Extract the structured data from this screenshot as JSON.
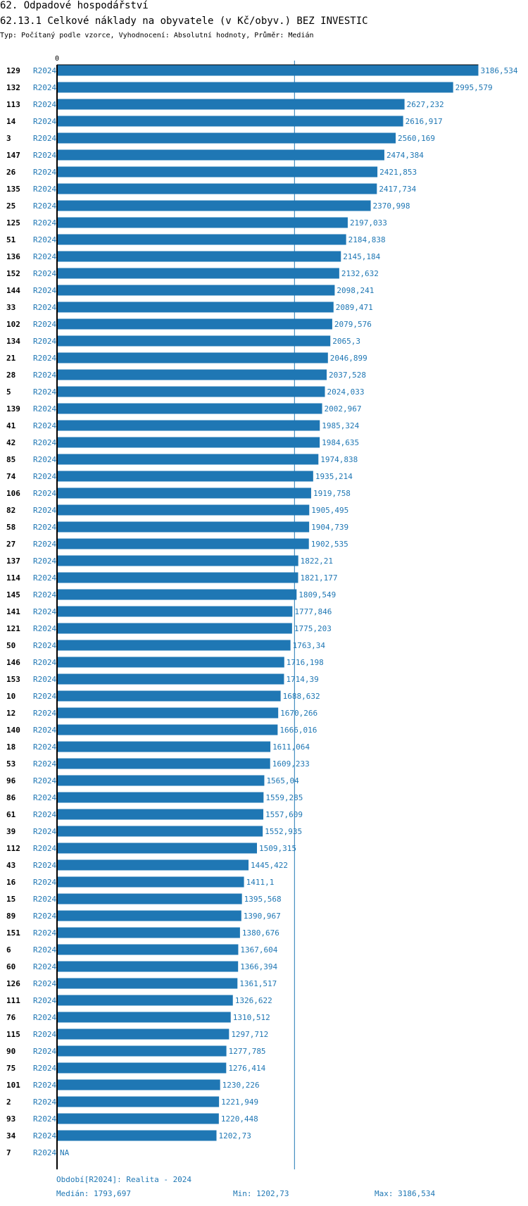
{
  "header": {
    "section": "62. Odpadové hospodářství",
    "title": "62.13.1 Celkové náklady na obyvatele (v Kč/obyv.) BEZ INVESTIC",
    "subtitle": "Typ: Počítaný podle vzorce, Vyhodnocení: Absolutní hodnoty, Průměr: Medián"
  },
  "chart_data": {
    "type": "bar",
    "orientation": "horizontal",
    "zero_label": "0",
    "period": "R2024",
    "bar_color": "#1f77b4",
    "median_line": 1793.697,
    "categories": [
      "129",
      "132",
      "113",
      "14",
      "3",
      "147",
      "26",
      "135",
      "25",
      "125",
      "51",
      "136",
      "152",
      "144",
      "33",
      "102",
      "134",
      "21",
      "28",
      "5",
      "139",
      "41",
      "42",
      "85",
      "74",
      "106",
      "82",
      "58",
      "27",
      "137",
      "114",
      "145",
      "141",
      "121",
      "50",
      "146",
      "153",
      "10",
      "12",
      "140",
      "18",
      "53",
      "96",
      "86",
      "61",
      "39",
      "112",
      "43",
      "16",
      "15",
      "89",
      "151",
      "6",
      "60",
      "126",
      "111",
      "76",
      "115",
      "90",
      "75",
      "101",
      "2",
      "93",
      "34",
      "7"
    ],
    "values": [
      3186.534,
      2995.579,
      2627.232,
      2616.917,
      2560.169,
      2474.384,
      2421.853,
      2417.734,
      2370.998,
      2197.033,
      2184.838,
      2145.184,
      2132.632,
      2098.241,
      2089.471,
      2079.576,
      2065.3,
      2046.899,
      2037.528,
      2024.033,
      2002.967,
      1985.324,
      1984.635,
      1974.838,
      1935.214,
      1919.758,
      1905.495,
      1904.739,
      1902.535,
      1822.21,
      1821.177,
      1809.549,
      1777.846,
      1775.203,
      1763.34,
      1716.198,
      1714.39,
      1688.632,
      1670.266,
      1666.016,
      1611.064,
      1609.233,
      1565.04,
      1559.285,
      1557.609,
      1552.935,
      1509.315,
      1445.422,
      1411.1,
      1395.568,
      1390.967,
      1380.676,
      1367.604,
      1366.394,
      1361.517,
      1326.622,
      1310.512,
      1297.712,
      1277.785,
      1276.414,
      1230.226,
      1221.949,
      1220.448,
      1202.73,
      null
    ],
    "value_labels": [
      "3186,534",
      "2995,579",
      "2627,232",
      "2616,917",
      "2560,169",
      "2474,384",
      "2421,853",
      "2417,734",
      "2370,998",
      "2197,033",
      "2184,838",
      "2145,184",
      "2132,632",
      "2098,241",
      "2089,471",
      "2079,576",
      "2065,3",
      "2046,899",
      "2037,528",
      "2024,033",
      "2002,967",
      "1985,324",
      "1984,635",
      "1974,838",
      "1935,214",
      "1919,758",
      "1905,495",
      "1904,739",
      "1902,535",
      "1822,21",
      "1821,177",
      "1809,549",
      "1777,846",
      "1775,203",
      "1763,34",
      "1716,198",
      "1714,39",
      "1688,632",
      "1670,266",
      "1666,016",
      "1611,064",
      "1609,233",
      "1565,04",
      "1559,285",
      "1557,609",
      "1552,935",
      "1509,315",
      "1445,422",
      "1411,1",
      "1395,568",
      "1390,967",
      "1380,676",
      "1367,604",
      "1366,394",
      "1361,517",
      "1326,622",
      "1310,512",
      "1297,712",
      "1277,785",
      "1276,414",
      "1230,226",
      "1221,949",
      "1220,448",
      "1202,73",
      "NA"
    ]
  },
  "footer": {
    "period_text": "Období[R2024]: Realita - 2024",
    "median_text": "Medián: 1793,697",
    "min_text": "Min: 1202,73",
    "max_text": "Max: 3186,534"
  }
}
